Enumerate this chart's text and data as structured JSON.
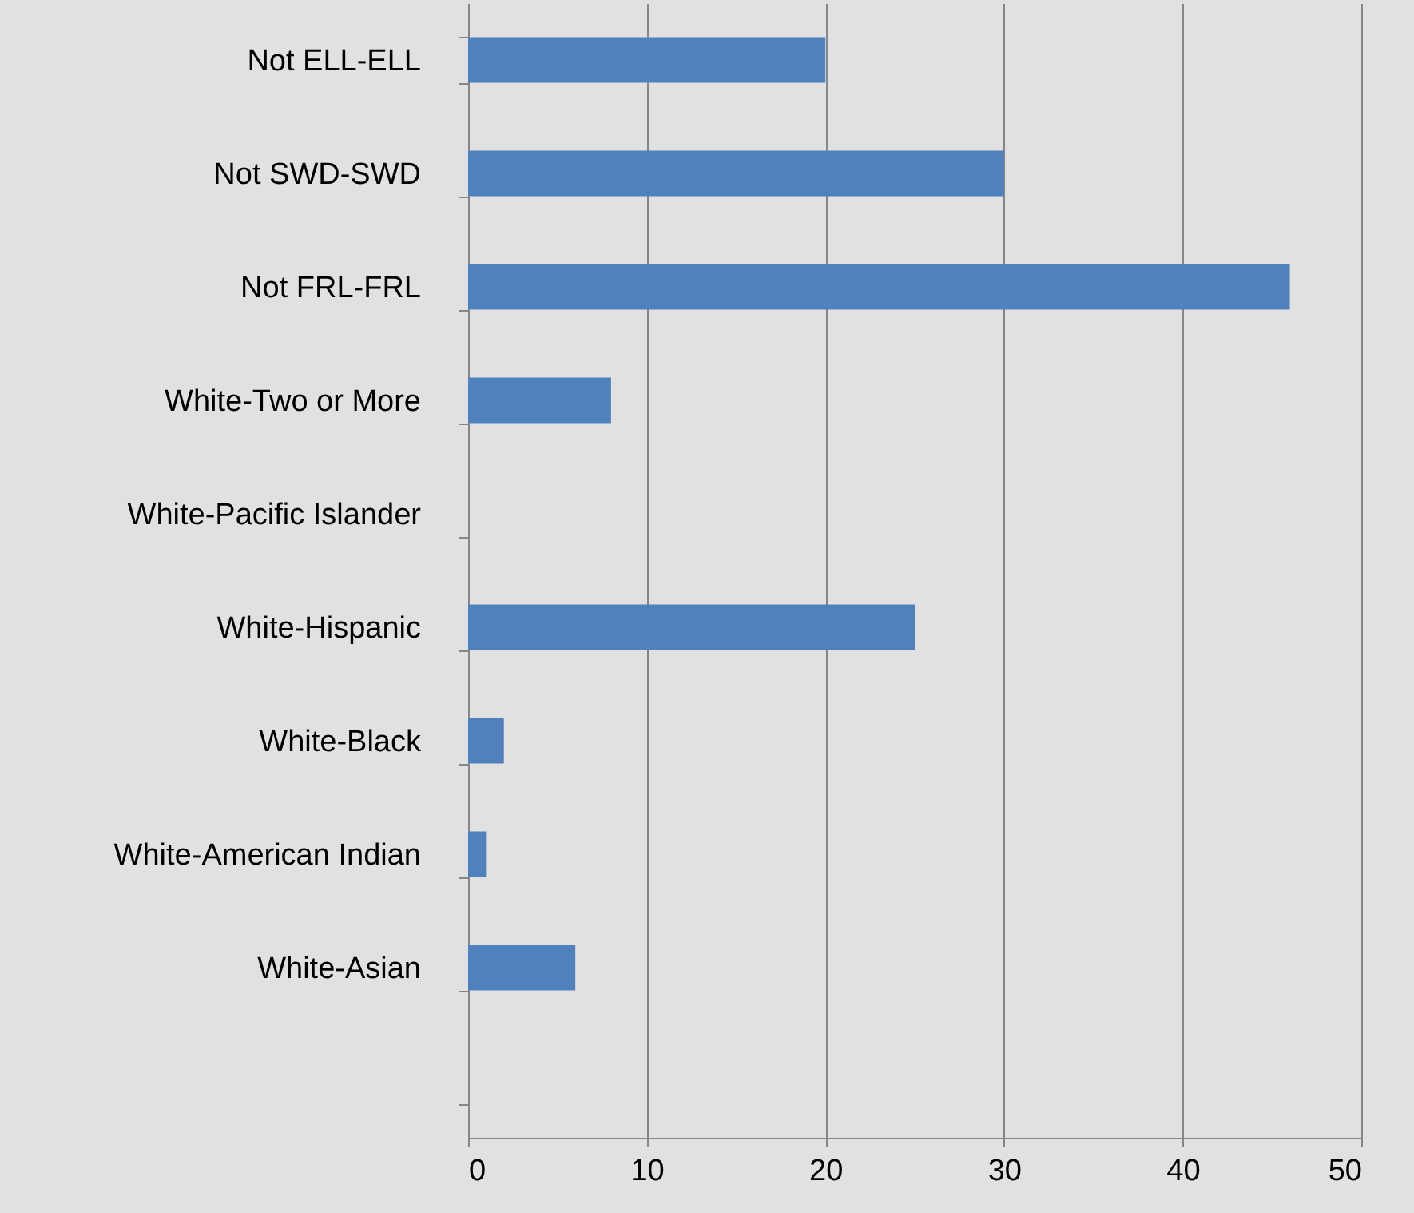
{
  "chart_data": {
    "type": "bar",
    "orientation": "horizontal",
    "categories": [
      "Not ELL-ELL",
      "Not SWD-SWD",
      "Not FRL-FRL",
      "White-Two or More",
      "White-Pacific Islander",
      "White-Hispanic",
      "White-Black",
      "White-American Indian",
      "White-Asian",
      null
    ],
    "values": [
      20,
      30,
      46,
      8,
      0,
      25,
      2,
      1,
      6,
      null
    ],
    "color": "#4f81bd",
    "xlim": [
      0,
      50
    ],
    "xticks": [
      0,
      10,
      20,
      30,
      40,
      50
    ],
    "grid": "x"
  }
}
